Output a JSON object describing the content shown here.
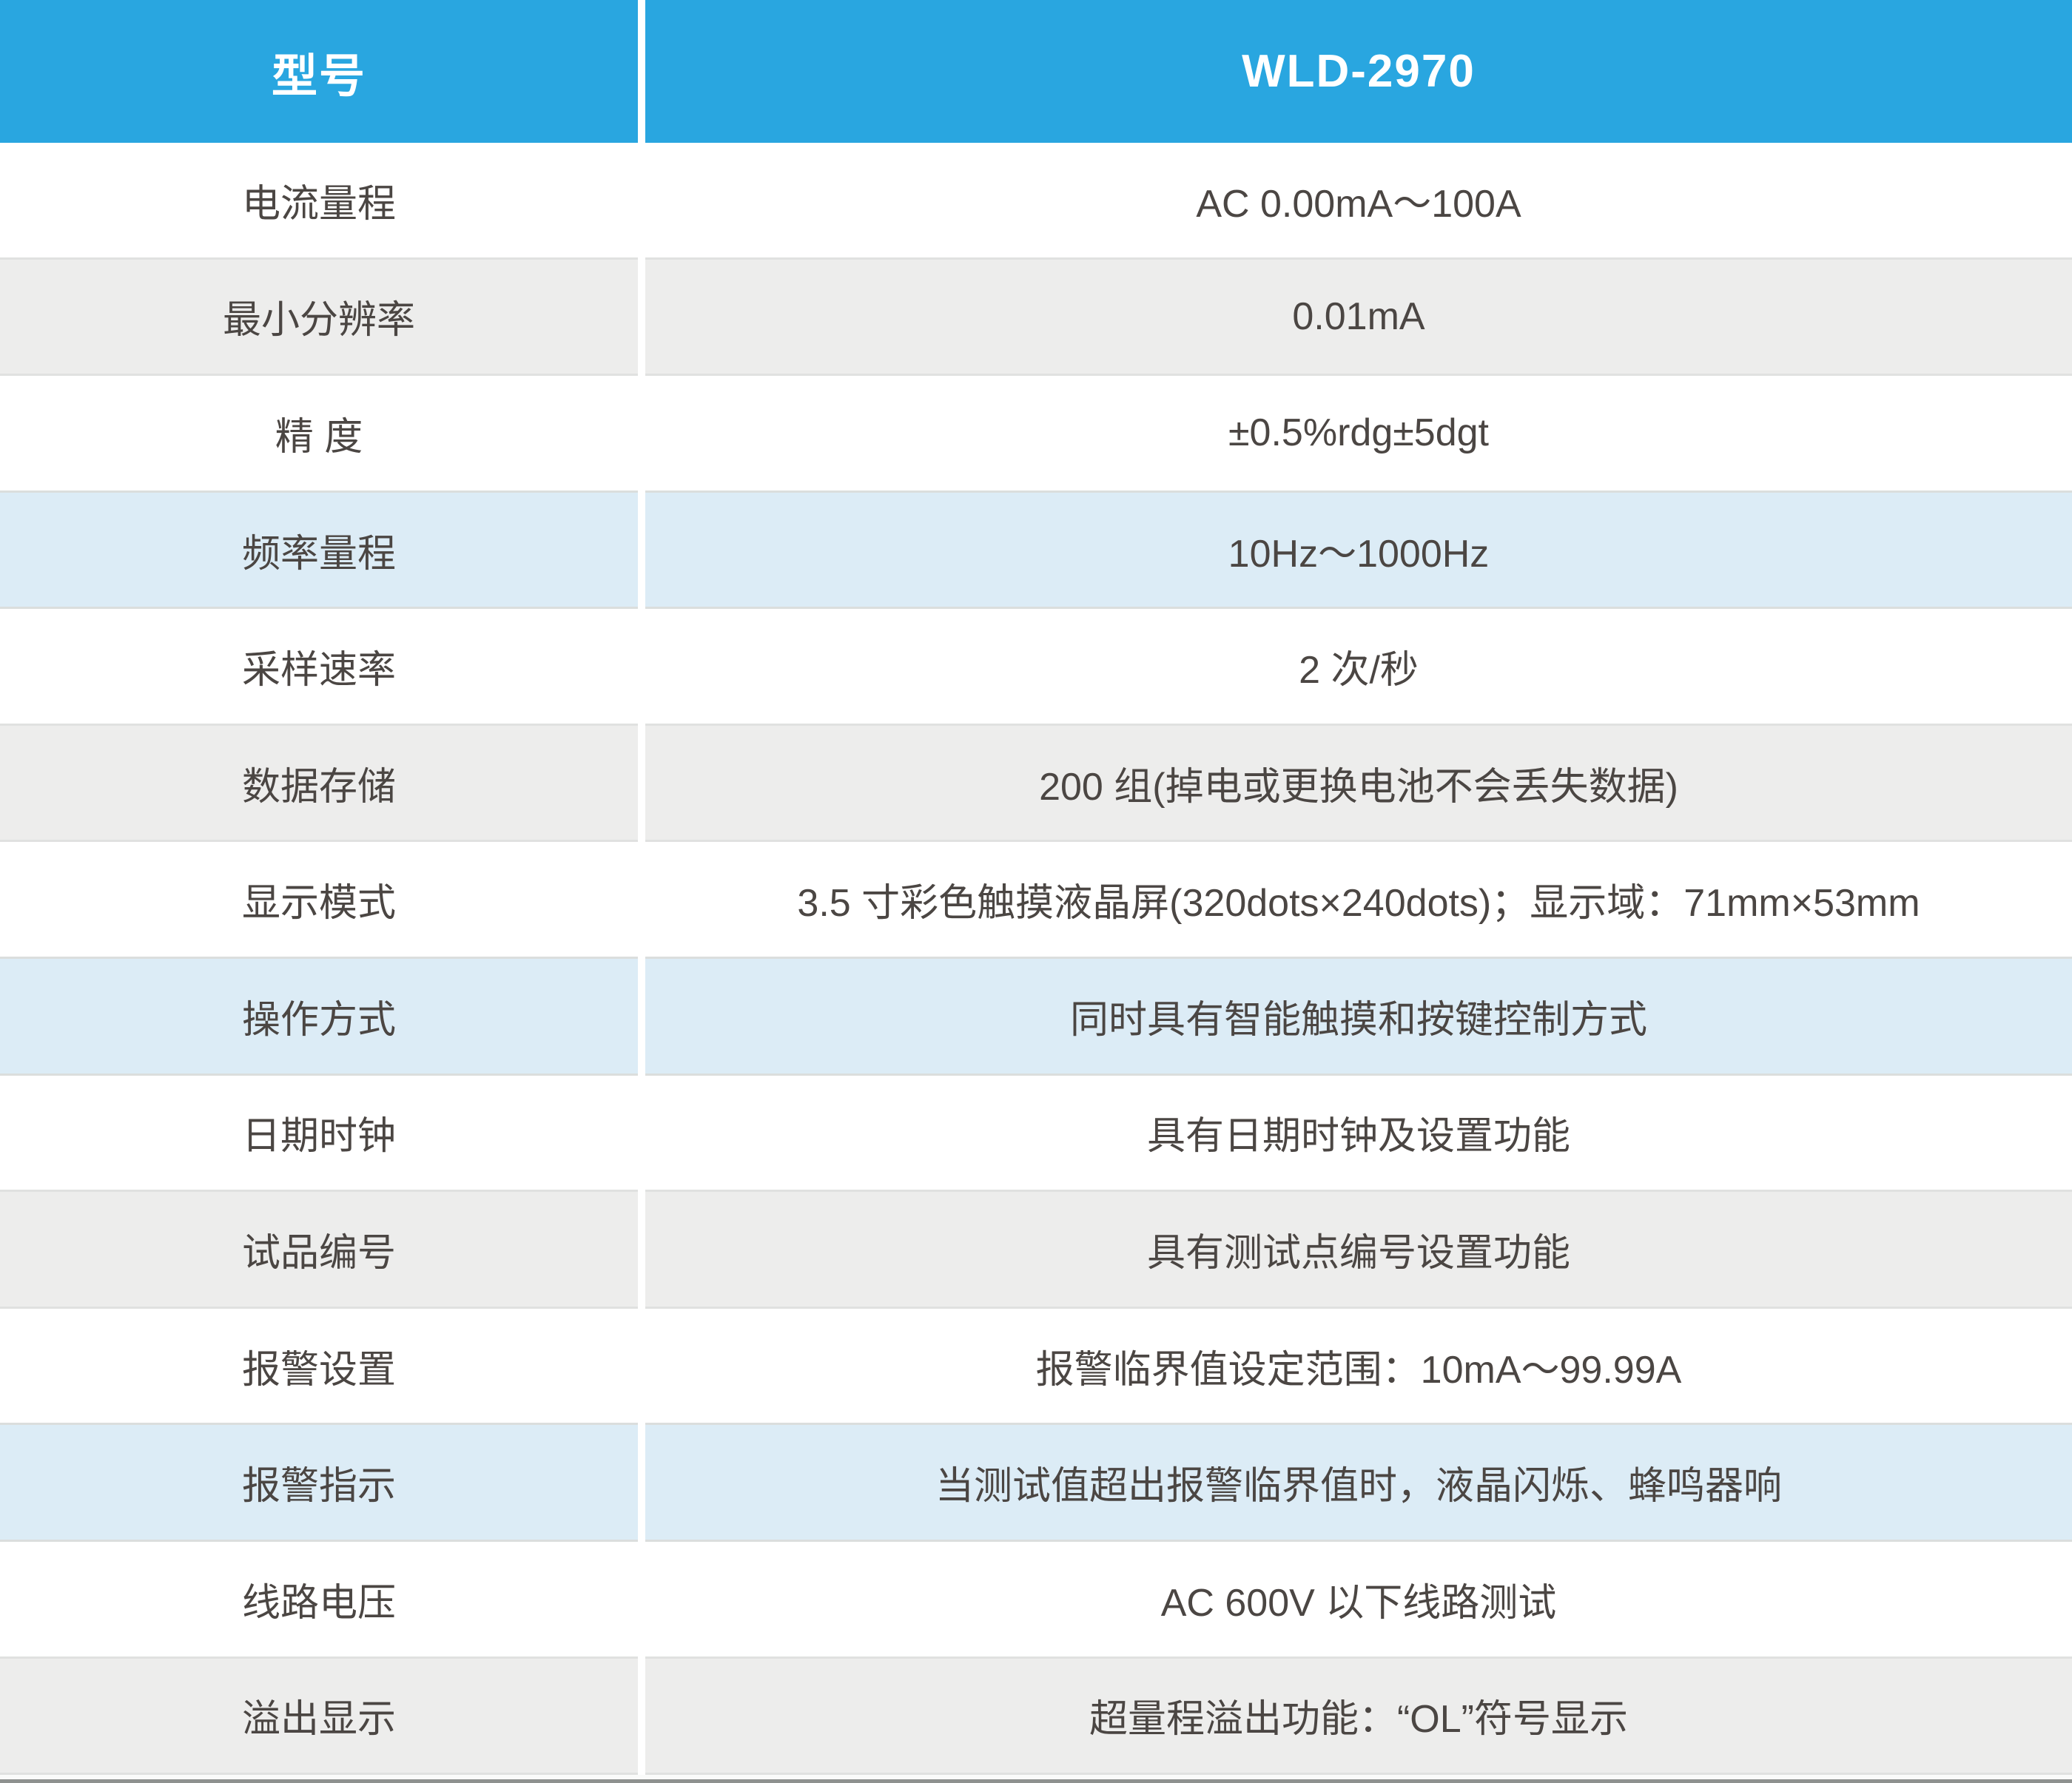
{
  "table": {
    "colors": {
      "header_bg": "#29a6e0",
      "header_text": "#ffffff",
      "gray_row": "#ededec",
      "blue_row": "#dcecf6",
      "text": "#4b4643",
      "bottom_bar": "#8e918f"
    },
    "header": {
      "label": "型号",
      "value": "WLD-2970"
    },
    "rows": [
      {
        "label": "电流量程",
        "value": "AC 0.00mA～100A",
        "tone": "white"
      },
      {
        "label": "最小分辨率",
        "value": "0.01mA",
        "tone": "gray"
      },
      {
        "label": "精 度",
        "value": "±0.5%rdg±5dgt",
        "tone": "white"
      },
      {
        "label": "频率量程",
        "value": "10Hz～1000Hz",
        "tone": "blue"
      },
      {
        "label": "采样速率",
        "value": "2 次/秒",
        "tone": "white"
      },
      {
        "label": "数据存储",
        "value": "200 组(掉电或更换电池不会丢失数据)",
        "tone": "gray"
      },
      {
        "label": "显示模式",
        "value": "3.5 寸彩色触摸液晶屏(320dots×240dots)；显示域：71mm×53mm",
        "tone": "white"
      },
      {
        "label": "操作方式",
        "value": "同时具有智能触摸和按键控制方式",
        "tone": "blue"
      },
      {
        "label": "日期时钟",
        "value": "具有日期时钟及设置功能",
        "tone": "white"
      },
      {
        "label": "试品编号",
        "value": "具有测试点编号设置功能",
        "tone": "gray"
      },
      {
        "label": "报警设置",
        "value": "报警临界值设定范围：10mA～99.99A",
        "tone": "white"
      },
      {
        "label": "报警指示",
        "value": "当测试值超出报警临界值时，液晶闪烁、蜂鸣器响",
        "tone": "blue"
      },
      {
        "label": "线路电压",
        "value": "AC 600V 以下线路测试",
        "tone": "white"
      },
      {
        "label": "溢出显示",
        "value": "超量程溢出功能：“OL”符号显示",
        "tone": "gray"
      }
    ]
  }
}
